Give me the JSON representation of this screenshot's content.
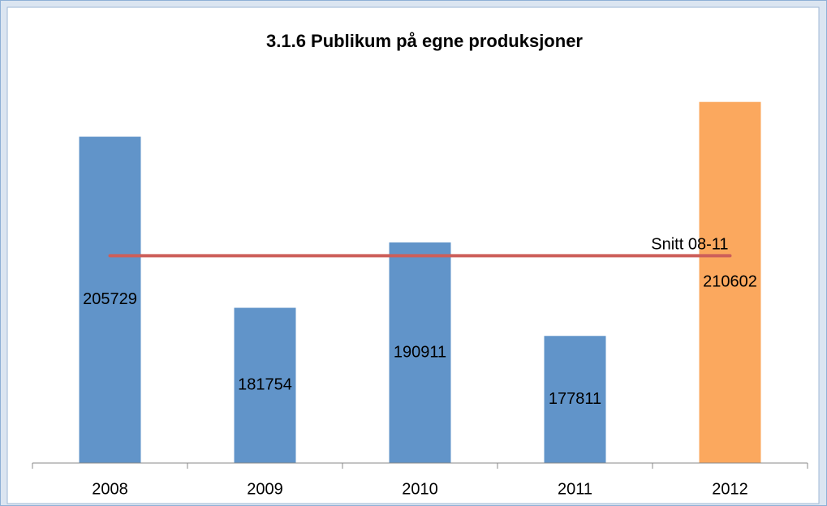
{
  "chart_data": {
    "type": "bar",
    "title": "3.1.6 Publikum på egne produksjoner",
    "categories": [
      "2008",
      "2009",
      "2010",
      "2011",
      "2012"
    ],
    "values": [
      205729,
      181754,
      190911,
      177811,
      210602
    ],
    "colors": [
      "#6194c9",
      "#6194c9",
      "#6194c9",
      "#6194c9",
      "#fba85e"
    ],
    "ylim": [
      160000,
      215000
    ],
    "reference_line": {
      "label": "Snitt 08-11",
      "value": 189051,
      "color": "#cd5f5a"
    }
  }
}
